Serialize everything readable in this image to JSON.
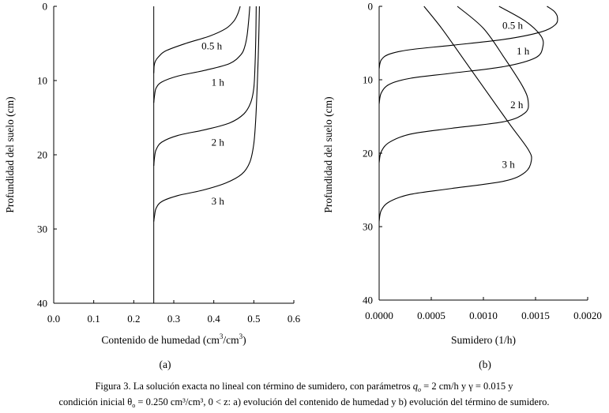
{
  "chart_data": [
    {
      "type": "line",
      "panel_label": "(a)",
      "xlabel": "Contenido de humedad (cm3/cm3)",
      "xlabel_parts": {
        "main": "Contenido de humedad (cm",
        "sup1": "3",
        "mid": "/cm",
        "sup2": "3",
        "end": ")"
      },
      "ylabel": "Profundidad del suelo (cm)",
      "xlim": [
        0,
        0.6
      ],
      "ylim": [
        0,
        40
      ],
      "y_inverted": true,
      "x_ticks": [
        "0.0",
        "0.1",
        "0.2",
        "0.3",
        "0.4",
        "0.5",
        "0.6"
      ],
      "y_ticks": [
        "0",
        "10",
        "20",
        "30",
        "40"
      ],
      "grid": false,
      "vertical_line_x": 0.25,
      "series": [
        {
          "name": "0.5 h",
          "label_pos": [
            0.395,
            5.3
          ],
          "points": [
            [
              0.466,
              0
            ],
            [
              0.46,
              1
            ],
            [
              0.45,
              2
            ],
            [
              0.43,
              3
            ],
            [
              0.39,
              4
            ],
            [
              0.33,
              5
            ],
            [
              0.28,
              6
            ],
            [
              0.262,
              6.8
            ],
            [
              0.254,
              7.4
            ],
            [
              0.251,
              8
            ],
            [
              0.25,
              9
            ]
          ]
        },
        {
          "name": "1 h",
          "label_pos": [
            0.41,
            10.2
          ],
          "points": [
            [
              0.49,
              0
            ],
            [
              0.487,
              2
            ],
            [
              0.483,
              4
            ],
            [
              0.477,
              5.5
            ],
            [
              0.468,
              6.5
            ],
            [
              0.44,
              7.7
            ],
            [
              0.38,
              8.6
            ],
            [
              0.31,
              9.4
            ],
            [
              0.27,
              10.2
            ],
            [
              0.256,
              11
            ],
            [
              0.252,
              12
            ],
            [
              0.25,
              13
            ]
          ]
        },
        {
          "name": "2 h",
          "label_pos": [
            0.41,
            18.3
          ],
          "points": [
            [
              0.506,
              0
            ],
            [
              0.505,
              4
            ],
            [
              0.503,
              8
            ],
            [
              0.5,
              11
            ],
            [
              0.492,
              13
            ],
            [
              0.475,
              14.5
            ],
            [
              0.44,
              15.7
            ],
            [
              0.38,
              16.6
            ],
            [
              0.31,
              17.4
            ],
            [
              0.27,
              18.3
            ],
            [
              0.256,
              19.3
            ],
            [
              0.252,
              20.3
            ],
            [
              0.25,
              21.5
            ]
          ]
        },
        {
          "name": "3 h",
          "label_pos": [
            0.41,
            26.2
          ],
          "points": [
            [
              0.514,
              0
            ],
            [
              0.512,
              5
            ],
            [
              0.509,
              10
            ],
            [
              0.505,
              15
            ],
            [
              0.5,
              18.5
            ],
            [
              0.49,
              21
            ],
            [
              0.47,
              22.6
            ],
            [
              0.43,
              23.8
            ],
            [
              0.37,
              24.8
            ],
            [
              0.31,
              25.5
            ],
            [
              0.27,
              26.3
            ],
            [
              0.256,
              27.2
            ],
            [
              0.252,
              28.2
            ],
            [
              0.25,
              29
            ]
          ]
        }
      ]
    },
    {
      "type": "line",
      "panel_label": "(b)",
      "xlabel": "Sumidero (1/h)",
      "ylabel": "Profundidad del suelo (cm)",
      "xlim": [
        0,
        0.002
      ],
      "ylim": [
        0,
        40
      ],
      "y_inverted": true,
      "x_ticks": [
        "0.0000",
        "0.0005",
        "0.0010",
        "0.0015",
        "0.0020"
      ],
      "y_ticks": [
        "0",
        "10",
        "20",
        "30",
        "40"
      ],
      "grid": false,
      "series": [
        {
          "name": "0.5 h",
          "label_pos": [
            0.00128,
            2.6
          ],
          "points": [
            [
              0.00161,
              0
            ],
            [
              0.00168,
              0.7
            ],
            [
              0.00171,
              1.5
            ],
            [
              0.00169,
              2.5
            ],
            [
              0.00155,
              3.5
            ],
            [
              0.0012,
              4.5
            ],
            [
              0.0007,
              5.3
            ],
            [
              0.0003,
              5.9
            ],
            [
              0.0001,
              6.5
            ],
            [
              2e-05,
              7.3
            ],
            [
              0,
              8.5
            ]
          ]
        },
        {
          "name": "1 h",
          "label_pos": [
            0.00138,
            6.1
          ],
          "points": [
            [
              0.00115,
              0
            ],
            [
              0.0014,
              2
            ],
            [
              0.00155,
              4
            ],
            [
              0.00157,
              5.5
            ],
            [
              0.0015,
              7
            ],
            [
              0.0012,
              8.2
            ],
            [
              0.0007,
              9.1
            ],
            [
              0.0003,
              9.8
            ],
            [
              0.0001,
              10.6
            ],
            [
              2e-05,
              11.8
            ],
            [
              0,
              13.3
            ]
          ]
        },
        {
          "name": "2 h",
          "label_pos": [
            0.00132,
            13.4
          ],
          "points": [
            [
              0.00075,
              0
            ],
            [
              0.001,
              3
            ],
            [
              0.0012,
              7
            ],
            [
              0.00138,
              11
            ],
            [
              0.00143,
              13
            ],
            [
              0.0014,
              14.5
            ],
            [
              0.0012,
              15.7
            ],
            [
              0.0007,
              16.6
            ],
            [
              0.0003,
              17.4
            ],
            [
              0.0001,
              18.5
            ],
            [
              2e-05,
              19.8
            ],
            [
              0,
              21.3
            ]
          ]
        },
        {
          "name": "3 h",
          "label_pos": [
            0.00124,
            21.5
          ],
          "points": [
            [
              0.00043,
              0
            ],
            [
              0.0006,
              3
            ],
            [
              0.0008,
              7
            ],
            [
              0.001,
              11
            ],
            [
              0.00125,
              16
            ],
            [
              0.00143,
              19.5
            ],
            [
              0.00146,
              21
            ],
            [
              0.0014,
              22.6
            ],
            [
              0.0012,
              23.8
            ],
            [
              0.0007,
              24.8
            ],
            [
              0.0003,
              25.6
            ],
            [
              0.0001,
              26.6
            ],
            [
              2e-05,
              27.8
            ],
            [
              0,
              29.3
            ]
          ]
        }
      ]
    }
  ],
  "caption": {
    "line1_pre": "Figura 3. La solución exacta no lineal con término de sumidero, con parámetros ",
    "line1_qvar": "q",
    "line1_qsub": "o",
    "line1_post": " = 2 cm/h y γ = 0.015 y",
    "line2_pre": "condición inicial θ",
    "line2_sub": "o",
    "line2_post": " = 0.250 cm³/cm³, 0 < z: a) evolución del contenido de humedad y b) evolución del término de sumidero."
  }
}
